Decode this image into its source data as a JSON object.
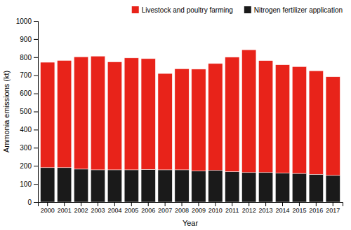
{
  "chart_data": {
    "type": "bar",
    "stacked": true,
    "xlabel": "Year",
    "ylabel": "Ammonia emissions (kt)",
    "categories": [
      "2000",
      "2001",
      "2002",
      "2003",
      "2004",
      "2005",
      "2006",
      "2007",
      "2008",
      "2009",
      "2010",
      "2011",
      "2012",
      "2013",
      "2014",
      "2015",
      "2016",
      "2017"
    ],
    "series": [
      {
        "name": "Nitrogen fertilizer application",
        "color": "#1a1a1a",
        "values": [
          190,
          190,
          182,
          178,
          178,
          178,
          180,
          178,
          178,
          172,
          175,
          168,
          163,
          163,
          160,
          158,
          153,
          147
        ]
      },
      {
        "name": "Livestock and poultry farming",
        "color": "#e8231a",
        "values": [
          582,
          592,
          620,
          628,
          596,
          618,
          612,
          532,
          558,
          562,
          590,
          632,
          678,
          618,
          598,
          590,
          572,
          545
        ]
      }
    ],
    "ylim": [
      0,
      1000
    ],
    "yticks": [
      0,
      100,
      200,
      300,
      400,
      500,
      600,
      700,
      800,
      900,
      1000
    ],
    "legend": "upper right"
  }
}
